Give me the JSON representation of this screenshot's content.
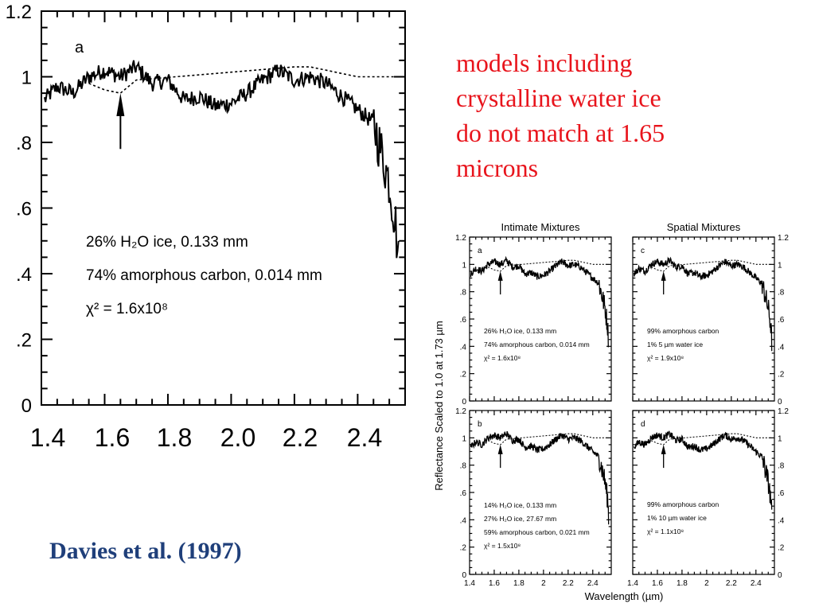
{
  "caption": {
    "lines": [
      "models including",
      "crystalline water ice",
      "do not match at 1.65",
      "microns"
    ]
  },
  "citation": "Davies et al. (1997)",
  "colors": {
    "caption": "#e8141c",
    "citation": "#1f3f7a",
    "spectrum": "#000000"
  },
  "chart_data": [
    {
      "type": "line",
      "panel_label": "a",
      "xlim": [
        1.4,
        2.55
      ],
      "ylim": [
        0,
        1.2
      ],
      "x_tick_labels": [
        "1.4",
        "1.6",
        "1.8",
        "2.0",
        "2.2",
        "2.4"
      ],
      "y_tick_labels": [
        "0",
        ".2",
        ".4",
        ".6",
        ".8",
        "1",
        "1.2"
      ],
      "annotation_lines": [
        "26% H₂O ice, 0.133 mm",
        "74% amorphous carbon, 0.014 mm",
        "χ² = 1.6x10⁸"
      ],
      "arrow_x": 1.65,
      "series": [
        {
          "style": "solid",
          "x": [
            1.41,
            1.45,
            1.5,
            1.55,
            1.6,
            1.65,
            1.7,
            1.75,
            1.8,
            1.85,
            1.9,
            1.95,
            2.0,
            2.05,
            2.1,
            2.15,
            2.2,
            2.25,
            2.3,
            2.35,
            2.4,
            2.45,
            2.5,
            2.52,
            2.53
          ],
          "y": [
            0.93,
            0.97,
            0.95,
            1.0,
            1.02,
            1.0,
            1.03,
            0.98,
            0.99,
            0.93,
            0.94,
            0.91,
            0.92,
            0.95,
            0.99,
            1.02,
            0.99,
            1.0,
            0.98,
            0.94,
            0.9,
            0.86,
            0.68,
            0.55,
            0.42
          ]
        },
        {
          "style": "dotted",
          "x": [
            1.55,
            1.6,
            1.65,
            1.7,
            2.2,
            2.25,
            2.3,
            2.35,
            2.4,
            2.45,
            2.5,
            2.53
          ],
          "y": [
            0.98,
            0.96,
            0.95,
            0.99,
            1.03,
            1.03,
            1.02,
            1.01,
            1.0,
            1.0,
            1.0,
            1.0
          ]
        }
      ]
    },
    {
      "type": "line",
      "group_titles": [
        "Intimate Mixtures",
        "Spatial Mixtures"
      ],
      "ylabel": "Reflectance Scaled to 1.0 at 1.73 µm",
      "xlabel": "Wavelength (µm)",
      "xlim": [
        1.4,
        2.55
      ],
      "ylim": [
        0,
        1.2
      ],
      "x_tick_labels": [
        "1.4",
        "1.6",
        "1.8",
        "2",
        "2.2",
        "2.4"
      ],
      "y_tick_labels": [
        "0",
        ".2",
        ".4",
        ".6",
        ".8",
        "1",
        "1.2"
      ],
      "panels": [
        {
          "label": "a",
          "notes": [
            "26% H₂O ice, 0.133 mm",
            "74% amorphous carbon, 0.014 mm",
            "χ² = 1.6x10⁸"
          ]
        },
        {
          "label": "c",
          "notes": [
            "99% amorphous carbon",
            "1% 5 µm water ice",
            "χ² = 1.9x10⁸"
          ]
        },
        {
          "label": "b",
          "notes": [
            "14% H₂O ice, 0.133 mm",
            "27% H₂O ice, 27.67 mm",
            "59% amorphous carbon, 0.021 mm",
            "χ² = 1.5x10⁸"
          ]
        },
        {
          "label": "d",
          "notes": [
            "99% amorphous carbon",
            "1% 10 µm water ice",
            "χ² = 1.1x10⁸"
          ]
        }
      ]
    }
  ]
}
